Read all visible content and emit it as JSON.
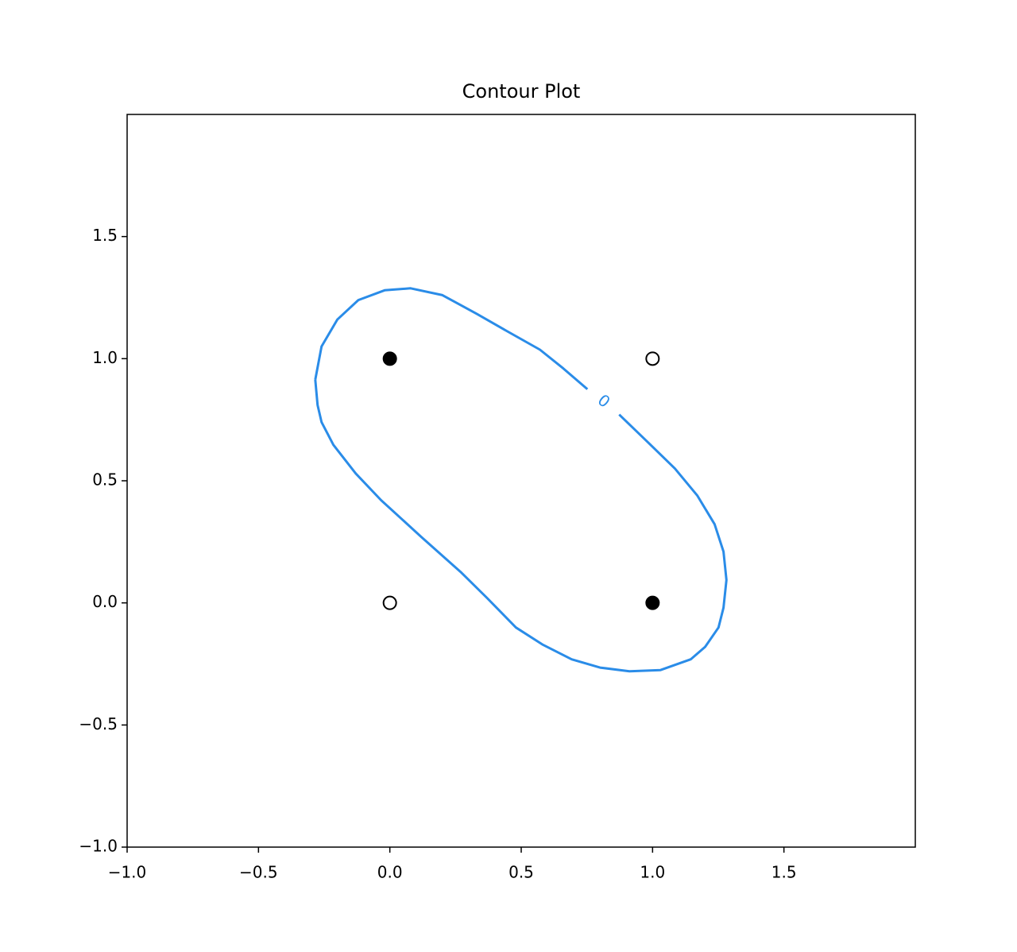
{
  "chart_data": {
    "type": "contour",
    "title": "Contour Plot",
    "xlim": [
      -1,
      2
    ],
    "ylim": [
      -1,
      2
    ],
    "xticks": [
      {
        "value": -1,
        "label": "−1.0"
      },
      {
        "value": -0.5,
        "label": "−0.5"
      },
      {
        "value": 0,
        "label": "0.0"
      },
      0.5,
      {
        "value": 1,
        "label": "1.0"
      },
      1.5
    ],
    "yticks": [
      {
        "value": -1,
        "label": "−1.0"
      },
      {
        "value": -0.5,
        "label": "−0.5"
      },
      {
        "value": 0,
        "label": "0.0"
      },
      0.5,
      {
        "value": 1,
        "label": "1.0"
      },
      1.5
    ],
    "contours": [
      {
        "level": 0,
        "color": "#2a8ce8",
        "x": [
          -0.284,
          -0.26,
          -0.2,
          -0.12,
          -0.02,
          0.079,
          0.2,
          0.33,
          0.45,
          0.571,
          0.66,
          0.752,
          null,
          0.873,
          0.98,
          1.085,
          1.17,
          1.236,
          1.27,
          1.281,
          1.27,
          1.251,
          1.2,
          1.145,
          1.03,
          0.912,
          0.8,
          0.692,
          0.58,
          0.48,
          0.37,
          0.269,
          0.12,
          -0.033,
          -0.13,
          -0.215,
          -0.26,
          -0.275,
          -0.284
        ],
        "y": [
          0.914,
          1.05,
          1.16,
          1.24,
          1.28,
          1.288,
          1.26,
          1.184,
          1.11,
          1.037,
          0.96,
          0.875,
          null,
          0.771,
          0.66,
          0.55,
          0.44,
          0.322,
          0.21,
          0.094,
          -0.02,
          -0.101,
          -0.18,
          -0.231,
          -0.275,
          -0.28,
          -0.265,
          -0.231,
          -0.17,
          -0.101,
          0.02,
          0.127,
          0.27,
          0.42,
          0.53,
          0.647,
          0.74,
          0.81,
          0.914
        ]
      }
    ],
    "points": [
      {
        "fill": "#000000",
        "x": [
          0,
          1
        ],
        "y": [
          1,
          0
        ]
      },
      {
        "fill": "#ffffff",
        "x": [
          0,
          1
        ],
        "y": [
          0,
          1
        ]
      }
    ]
  }
}
